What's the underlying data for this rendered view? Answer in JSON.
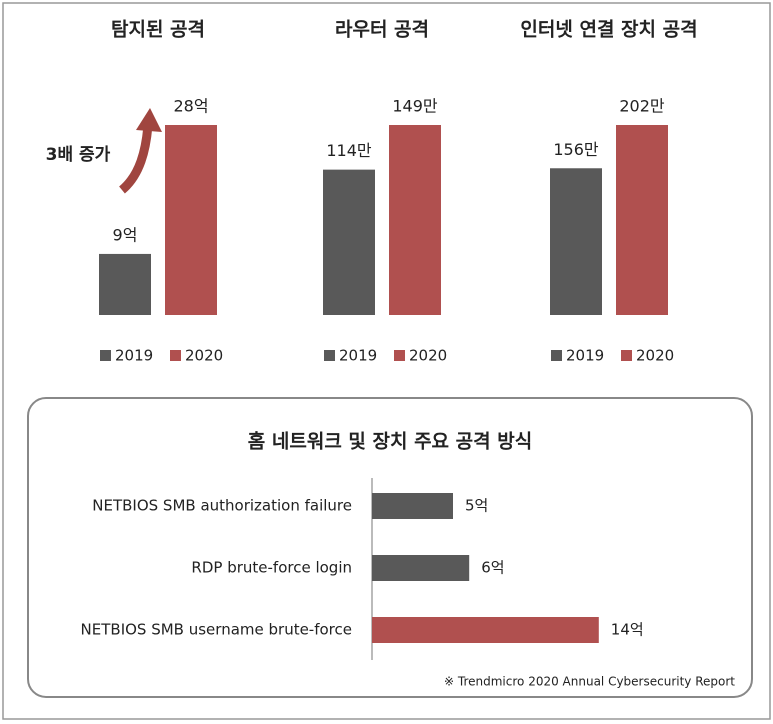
{
  "chart_data": [
    {
      "type": "bar",
      "title": "탐지된 공격",
      "series": [
        {
          "name": "2019",
          "color": "#595959",
          "values": [
            9
          ],
          "value_labels": [
            "9억"
          ]
        },
        {
          "name": "2020",
          "color": "#b0504f",
          "values": [
            28
          ],
          "value_labels": [
            "28억"
          ]
        }
      ],
      "annotation": "3배 증가"
    },
    {
      "type": "bar",
      "title": "라우터 공격",
      "series": [
        {
          "name": "2019",
          "color": "#595959",
          "values": [
            114
          ],
          "value_labels": [
            "114만"
          ]
        },
        {
          "name": "2020",
          "color": "#b0504f",
          "values": [
            149
          ],
          "value_labels": [
            "149만"
          ]
        }
      ]
    },
    {
      "type": "bar",
      "title": "인터넷 연결 장치 공격",
      "series": [
        {
          "name": "2019",
          "color": "#595959",
          "values": [
            156
          ],
          "value_labels": [
            "156만"
          ]
        },
        {
          "name": "2020",
          "color": "#b0504f",
          "values": [
            202
          ],
          "value_labels": [
            "202만"
          ]
        }
      ]
    },
    {
      "type": "hbar",
      "title": "홈 네트워크 및 장치 주요 공격 방식",
      "categories": [
        "NETBIOS SMB authorization failure",
        "RDP brute-force login",
        "NETBIOS SMB username brute-force"
      ],
      "values": [
        5,
        6,
        14
      ],
      "value_labels": [
        "5억",
        "6억",
        "14억"
      ],
      "colors": [
        "#595959",
        "#595959",
        "#b0504f"
      ],
      "source": "※ Trendmicro 2020 Annual Cybersecurity Report"
    }
  ]
}
